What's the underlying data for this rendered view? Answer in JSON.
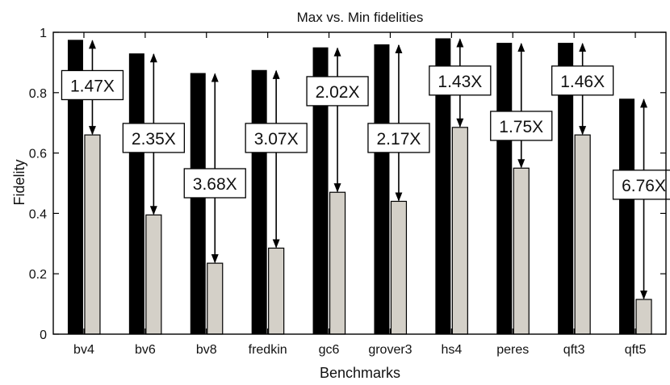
{
  "chart_data": {
    "type": "bar",
    "title": "Max vs. Min fidelities",
    "xlabel": "Benchmarks",
    "ylabel": "Fidelity",
    "ylim": [
      0,
      1
    ],
    "yticks": [
      0,
      0.2,
      0.4,
      0.6,
      0.8,
      1
    ],
    "ytick_labels": [
      "0",
      "0.2",
      "0.4",
      "0.6",
      "0.8",
      "1"
    ],
    "categories": [
      "bv4",
      "bv6",
      "bv8",
      "fredkin",
      "gc6",
      "grover3",
      "hs4",
      "peres",
      "qft3",
      "qft5"
    ],
    "series": [
      {
        "values": [
          0.975,
          0.93,
          0.865,
          0.875,
          0.95,
          0.96,
          0.98,
          0.965,
          0.965,
          0.78
        ],
        "color": "#000000"
      },
      {
        "values": [
          0.66,
          0.395,
          0.235,
          0.285,
          0.47,
          0.44,
          0.685,
          0.55,
          0.66,
          0.115
        ],
        "color": "#d4d0c8"
      }
    ],
    "annotations": [
      "1.47X",
      "2.35X",
      "3.68X",
      "3.07X",
      "2.02X",
      "2.17X",
      "1.43X",
      "1.75X",
      "1.46X",
      "6.76X"
    ],
    "annotation_values": [
      0.825,
      0.65,
      0.5,
      0.65,
      0.805,
      0.65,
      0.84,
      0.69,
      0.84,
      0.495
    ],
    "grid": false,
    "legend": "none"
  }
}
